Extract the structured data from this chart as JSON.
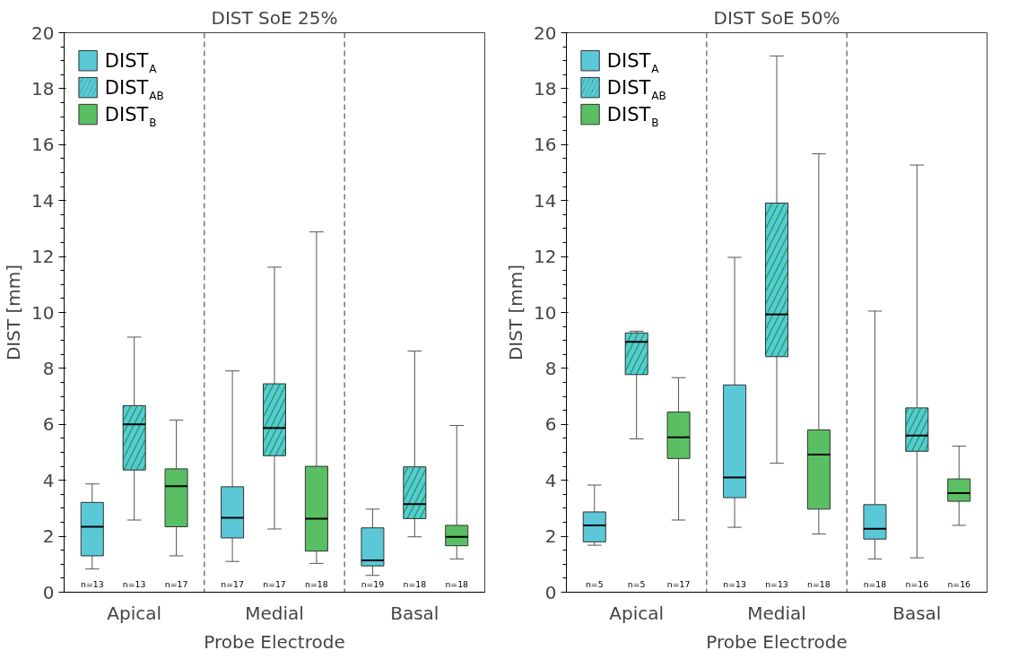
{
  "chart_data": [
    {
      "type": "box",
      "title": "DIST SoE 25%",
      "xlabel": "Probe Electrode",
      "ylabel": "DIST [mm]",
      "categories": [
        "Apical",
        "Medial",
        "Basal"
      ],
      "ylim": [
        0,
        20
      ],
      "yticks": [
        0,
        2,
        4,
        6,
        8,
        10,
        12,
        14,
        16,
        18,
        20
      ],
      "grid": false,
      "legend": "top left",
      "series": [
        {
          "name": "DIST$_{A}$",
          "color": "#5bc8d8",
          "boxes": [
            {
              "low": 0.83,
              "q1": 1.3,
              "median": 2.34,
              "q3": 3.21,
              "high": 3.87
            },
            {
              "low": 1.1,
              "q1": 1.94,
              "median": 2.66,
              "q3": 3.77,
              "high": 7.91
            },
            {
              "low": 0.6,
              "q1": 0.94,
              "median": 1.14,
              "q3": 2.3,
              "high": 2.97
            }
          ]
        },
        {
          "name": "DIST$_{AB}$",
          "color": "#12a650",
          "boxes": [
            {
              "low": 2.58,
              "q1": 4.37,
              "median": 6.0,
              "q3": 6.67,
              "high": 9.12
            },
            {
              "low": 2.26,
              "q1": 4.88,
              "median": 5.87,
              "q3": 7.45,
              "high": 11.62
            },
            {
              "low": 1.98,
              "q1": 2.63,
              "median": 3.15,
              "q3": 4.48,
              "high": 8.62
            }
          ]
        },
        {
          "name": "DIST$_{B}$",
          "color": "#5abf63",
          "boxes": [
            {
              "low": 1.3,
              "q1": 2.34,
              "median": 3.79,
              "q3": 4.41,
              "high": 6.15
            },
            {
              "low": 1.03,
              "q1": 1.47,
              "median": 2.63,
              "q3": 4.5,
              "high": 12.88
            },
            {
              "low": 1.19,
              "q1": 1.66,
              "median": 1.98,
              "q3": 2.39,
              "high": 5.96
            }
          ]
        }
      ],
      "annotations": [
        "n=13",
        "n=13",
        "n=17",
        "n=17",
        "n=17",
        "n=18",
        "n=19",
        "n=18",
        "n=18"
      ]
    },
    {
      "type": "box",
      "title": "DIST SoE 50%",
      "xlabel": "Probe Electrode",
      "ylabel": "DIST [mm]",
      "categories": [
        "Apical",
        "Medial",
        "Basal"
      ],
      "ylim": [
        0,
        20
      ],
      "yticks": [
        0,
        2,
        4,
        6,
        8,
        10,
        12,
        14,
        16,
        18,
        20
      ],
      "grid": false,
      "legend": "top left",
      "series": [
        {
          "name": "DIST$_{A}$",
          "color": "#5bc8d8",
          "boxes": [
            {
              "low": 1.68,
              "q1": 1.8,
              "median": 2.39,
              "q3": 2.87,
              "high": 3.83
            },
            {
              "low": 2.32,
              "q1": 3.38,
              "median": 4.1,
              "q3": 7.41,
              "high": 11.97
            },
            {
              "low": 1.19,
              "q1": 1.9,
              "median": 2.27,
              "q3": 3.13,
              "high": 10.05
            }
          ]
        },
        {
          "name": "DIST$_{AB}$",
          "color": "#12a650",
          "boxes": [
            {
              "low": 5.48,
              "q1": 7.78,
              "median": 8.95,
              "q3": 9.27,
              "high": 9.33
            },
            {
              "low": 4.61,
              "q1": 8.42,
              "median": 9.93,
              "q3": 13.91,
              "high": 19.17
            },
            {
              "low": 1.23,
              "q1": 5.04,
              "median": 5.6,
              "q3": 6.59,
              "high": 15.27
            }
          ]
        },
        {
          "name": "DIST$_{B}$",
          "color": "#5abf63",
          "boxes": [
            {
              "low": 2.58,
              "q1": 4.78,
              "median": 5.54,
              "q3": 6.44,
              "high": 7.67
            },
            {
              "low": 2.08,
              "q1": 2.97,
              "median": 4.92,
              "q3": 5.8,
              "high": 15.67
            },
            {
              "low": 2.39,
              "q1": 3.25,
              "median": 3.54,
              "q3": 4.05,
              "high": 5.22
            }
          ]
        }
      ],
      "annotations": [
        "n=5",
        "n=5",
        "n=17",
        "n=13",
        "n=13",
        "n=18",
        "n=18",
        "n=16",
        "n=16"
      ]
    }
  ]
}
